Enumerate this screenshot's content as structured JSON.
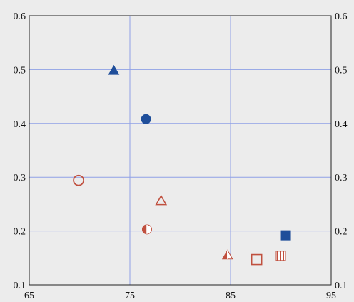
{
  "chart_data": {
    "type": "scatter",
    "title": "",
    "xlabel": "",
    "ylabel": "",
    "xlim": [
      65,
      95
    ],
    "ylim": [
      0.1,
      0.6
    ],
    "x_ticks": [
      {
        "value": 65,
        "label": "65"
      },
      {
        "value": 75,
        "label": "75"
      },
      {
        "value": 85,
        "label": "85"
      },
      {
        "value": 95,
        "label": "95"
      }
    ],
    "y_ticks": [
      {
        "value": 0.1,
        "label": "0.1"
      },
      {
        "value": 0.2,
        "label": "0.2"
      },
      {
        "value": 0.3,
        "label": "0.3"
      },
      {
        "value": 0.4,
        "label": "0.4"
      },
      {
        "value": 0.5,
        "label": "0.5"
      },
      {
        "value": 0.6,
        "label": "0.6"
      }
    ],
    "grid": true,
    "right_axis_labels": true,
    "colors": {
      "blue": "#1f4e9a",
      "red": "#c0503f"
    },
    "points": [
      {
        "x": 73.4,
        "y": 0.498,
        "marker": "triangle",
        "style": "filled",
        "color": "#1f4e9a"
      },
      {
        "x": 76.6,
        "y": 0.408,
        "marker": "circle",
        "style": "filled",
        "color": "#1f4e9a"
      },
      {
        "x": 90.5,
        "y": 0.192,
        "marker": "square",
        "style": "filled",
        "color": "#1f4e9a"
      },
      {
        "x": 69.9,
        "y": 0.294,
        "marker": "circle",
        "style": "open",
        "color": "#c0503f"
      },
      {
        "x": 78.1,
        "y": 0.256,
        "marker": "triangle",
        "style": "open",
        "color": "#c0503f"
      },
      {
        "x": 76.7,
        "y": 0.203,
        "marker": "circle",
        "style": "half",
        "color": "#c0503f"
      },
      {
        "x": 84.7,
        "y": 0.155,
        "marker": "triangle",
        "style": "half",
        "color": "#c0503f"
      },
      {
        "x": 87.6,
        "y": 0.147,
        "marker": "square",
        "style": "open",
        "color": "#c0503f"
      },
      {
        "x": 90.0,
        "y": 0.154,
        "marker": "square",
        "style": "striped",
        "color": "#c0503f"
      }
    ]
  }
}
